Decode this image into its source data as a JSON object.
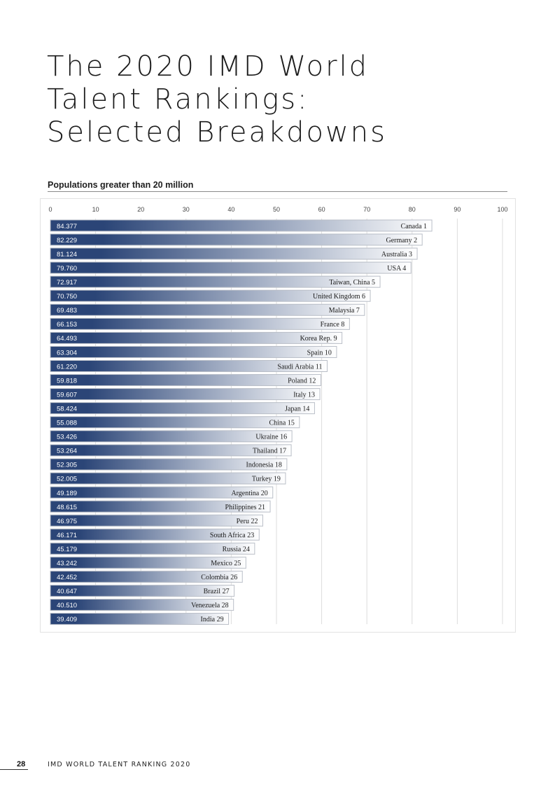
{
  "page": {
    "title_lines": [
      "The 2020 IMD World",
      "Talent Rankings:",
      "Selected Breakdowns"
    ],
    "page_number": "28",
    "footer_text": "IMD WORLD TALENT RANKING 2020"
  },
  "chart_data": {
    "type": "bar",
    "orientation": "horizontal",
    "title": "Populations greater than 20 million",
    "xlim": [
      0,
      100
    ],
    "xticks": [
      0,
      10,
      20,
      30,
      40,
      50,
      60,
      70,
      80,
      90,
      100
    ],
    "grid": true,
    "categories": [
      "Canada 1",
      "Germany 2",
      "Australia 3",
      "USA 4",
      "Taiwan, China 5",
      "United Kingdom 6",
      "Malaysia 7",
      "France 8",
      "Korea Rep. 9",
      "Spain 10",
      "Saudi Arabia 11",
      "Poland 12",
      "Italy 13",
      "Japan 14",
      "China 15",
      "Ukraine 16",
      "Thailand 17",
      "Indonesia 18",
      "Turkey 19",
      "Argentina 20",
      "Philippines 21",
      "Peru 22",
      "South Africa 23",
      "Russia 24",
      "Mexico 25",
      "Colombia 26",
      "Brazil 27",
      "Venezuela 28",
      "India 29"
    ],
    "values": [
      84.377,
      82.229,
      81.124,
      79.76,
      72.917,
      70.75,
      69.483,
      66.153,
      64.493,
      63.304,
      61.22,
      59.818,
      59.607,
      58.424,
      55.088,
      53.426,
      53.264,
      52.305,
      52.005,
      49.189,
      48.615,
      46.975,
      46.171,
      45.179,
      43.242,
      42.452,
      40.647,
      40.51,
      39.409
    ],
    "value_labels": [
      "84.377",
      "82.229",
      "81.124",
      "79.760",
      "72.917",
      "70.750",
      "69.483",
      "66.153",
      "64.493",
      "63.304",
      "61.220",
      "59.818",
      "59.607",
      "58.424",
      "55.088",
      "53.426",
      "53.264",
      "52.305",
      "52.005",
      "49.189",
      "48.615",
      "46.975",
      "46.171",
      "45.179",
      "43.242",
      "42.452",
      "40.647",
      "40.510",
      "39.409"
    ],
    "colors": {
      "bar_dark": "#2b4577",
      "bar_light": "#ffffff",
      "bar_border": "#b9bec7",
      "grid": "#dcdcdc"
    }
  }
}
